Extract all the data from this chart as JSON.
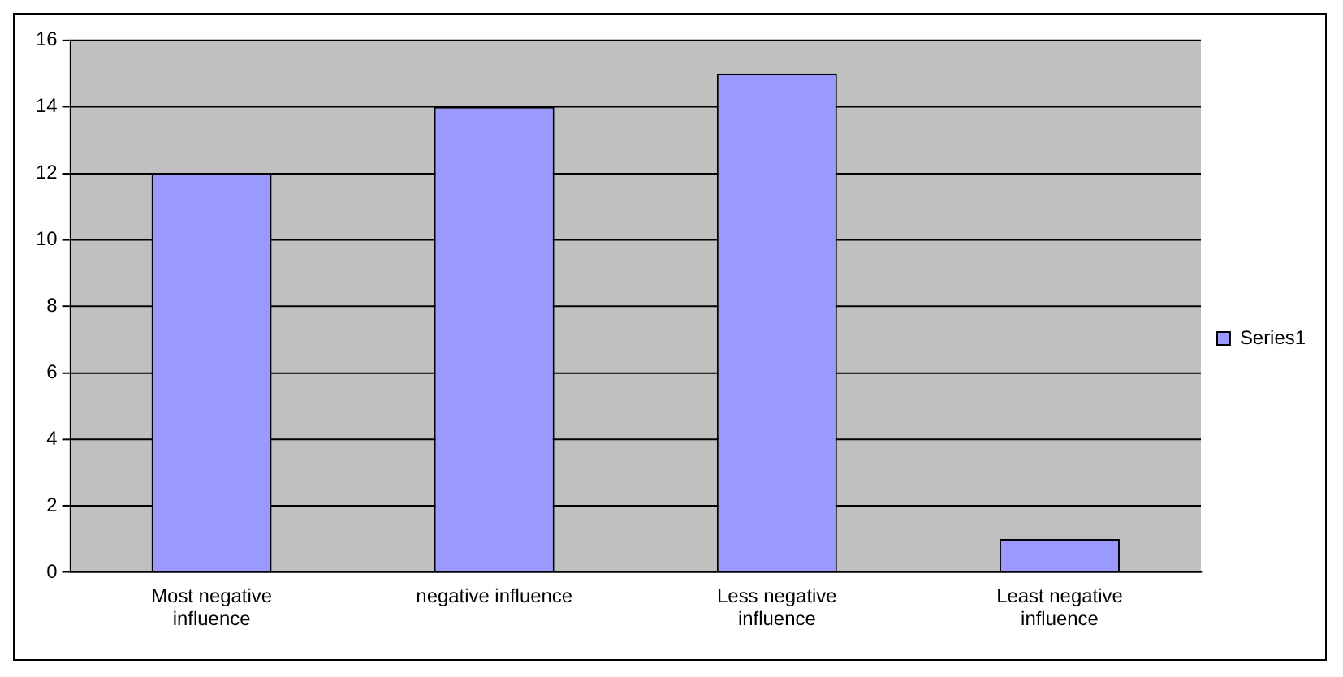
{
  "chart_data": {
    "type": "bar",
    "categories": [
      "Most negative influence",
      "negative influence",
      "Less negative influence",
      "Least negative influence"
    ],
    "series": [
      {
        "name": "Series1",
        "color": "#9999ff",
        "values": [
          12,
          14,
          15,
          1
        ]
      }
    ],
    "ylim": [
      0,
      16
    ],
    "yticks": [
      0,
      2,
      4,
      6,
      8,
      10,
      12,
      14,
      16
    ],
    "grid": "y",
    "legend": "right"
  }
}
